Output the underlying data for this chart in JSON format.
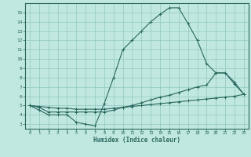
{
  "xlabel": "Humidex (Indice chaleur)",
  "bg_color": "#c0e8e0",
  "line_color": "#2a6860",
  "grid_color": "#90c8c0",
  "xlim": [
    -0.5,
    23.5
  ],
  "ylim": [
    2.5,
    16.0
  ],
  "xticks": [
    0,
    1,
    2,
    3,
    4,
    5,
    6,
    7,
    8,
    9,
    10,
    11,
    12,
    13,
    14,
    15,
    16,
    17,
    18,
    19,
    20,
    21,
    22,
    23
  ],
  "yticks": [
    3,
    4,
    5,
    6,
    7,
    8,
    9,
    10,
    11,
    12,
    13,
    14,
    15
  ],
  "line1_x": [
    0,
    1,
    2,
    3,
    4,
    5,
    6,
    7,
    8,
    9,
    10,
    11,
    12,
    13,
    14,
    15,
    16,
    17,
    18,
    19,
    20,
    21,
    22,
    23
  ],
  "line1_y": [
    5.0,
    4.5,
    4.0,
    4.0,
    4.0,
    3.2,
    3.0,
    2.8,
    5.2,
    8.0,
    11.0,
    12.0,
    13.0,
    14.0,
    14.8,
    15.5,
    15.5,
    13.8,
    12.0,
    9.5,
    8.5,
    8.5,
    7.3,
    6.2
  ],
  "line2_x": [
    0,
    1,
    2,
    3,
    4,
    5,
    6,
    7,
    8,
    9,
    10,
    11,
    12,
    13,
    14,
    15,
    16,
    17,
    18,
    19,
    20,
    21,
    22,
    23
  ],
  "line2_y": [
    5.0,
    4.8,
    4.3,
    4.3,
    4.3,
    4.3,
    4.3,
    4.3,
    4.3,
    4.5,
    4.8,
    5.0,
    5.3,
    5.6,
    5.9,
    6.1,
    6.4,
    6.7,
    7.0,
    7.2,
    8.5,
    8.5,
    7.5,
    6.2
  ],
  "line3_x": [
    0,
    1,
    2,
    3,
    4,
    5,
    6,
    7,
    8,
    9,
    10,
    11,
    12,
    13,
    14,
    15,
    16,
    17,
    18,
    19,
    20,
    21,
    22,
    23
  ],
  "line3_y": [
    5.0,
    4.9,
    4.8,
    4.7,
    4.7,
    4.6,
    4.6,
    4.6,
    4.6,
    4.7,
    4.8,
    4.9,
    5.0,
    5.1,
    5.2,
    5.3,
    5.4,
    5.5,
    5.6,
    5.7,
    5.8,
    5.9,
    6.0,
    6.2
  ]
}
